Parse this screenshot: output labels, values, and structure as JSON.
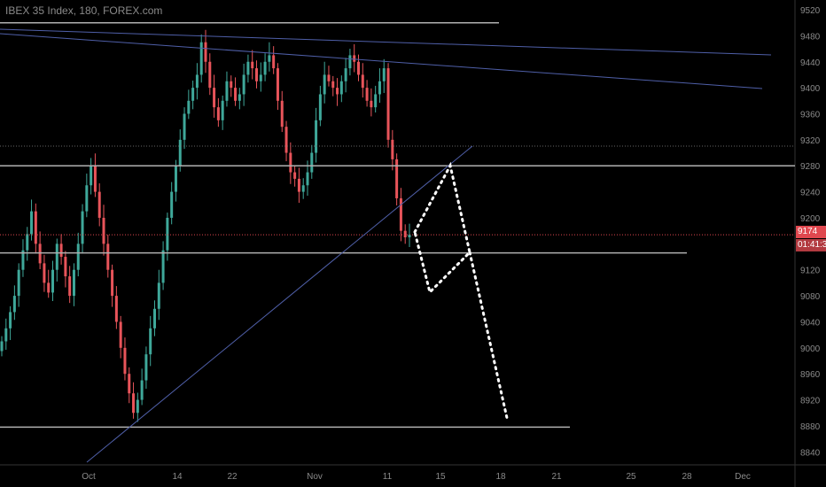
{
  "chart_data": {
    "type": "candlestick",
    "title": "IBEX 35 Index, 180, FOREX.com",
    "y_ticks": [
      9520,
      9480,
      9440,
      9400,
      9360,
      9320,
      9280,
      9240,
      9200,
      9160,
      9120,
      9080,
      9040,
      9000,
      8960,
      8920,
      8880,
      8840
    ],
    "x_ticks": [
      "Oct",
      "14",
      "22",
      "Nov",
      "11",
      "15",
      "18",
      "21",
      "25",
      "28",
      "Dec"
    ],
    "ylim": [
      8820,
      9535
    ],
    "last_price": "9174",
    "countdown": "01:41:3",
    "horizontal_levels": [
      9500,
      9280,
      9146,
      8878
    ],
    "colors": {
      "up": "#3fa89a",
      "down": "#e8545a",
      "level": "#b0b0b0",
      "trend": "#4f5fa8",
      "projection": "#ffffff",
      "price_line": "#e0484f"
    },
    "closes": [
      9010,
      9030,
      9055,
      9080,
      9120,
      9150,
      9175,
      9210,
      9160,
      9130,
      9100,
      9085,
      9120,
      9160,
      9140,
      9110,
      9080,
      9120,
      9160,
      9210,
      9250,
      9280,
      9240,
      9200,
      9160,
      9120,
      9080,
      9040,
      9000,
      8960,
      8930,
      8900,
      8920,
      8950,
      8990,
      9030,
      9060,
      9100,
      9150,
      9200,
      9240,
      9280,
      9320,
      9360,
      9380,
      9400,
      9420,
      9470,
      9440,
      9400,
      9370,
      9350,
      9380,
      9410,
      9400,
      9380,
      9390,
      9420,
      9440,
      9430,
      9410,
      9420,
      9440,
      9450,
      9430,
      9380,
      9340,
      9300,
      9270,
      9260,
      9240,
      9250,
      9270,
      9300,
      9350,
      9390,
      9420,
      9410,
      9400,
      9390,
      9410,
      9430,
      9450,
      9440,
      9420,
      9400,
      9380,
      9370,
      9390,
      9410,
      9430,
      9320,
      9290,
      9230,
      9180,
      9170,
      9174
    ]
  }
}
